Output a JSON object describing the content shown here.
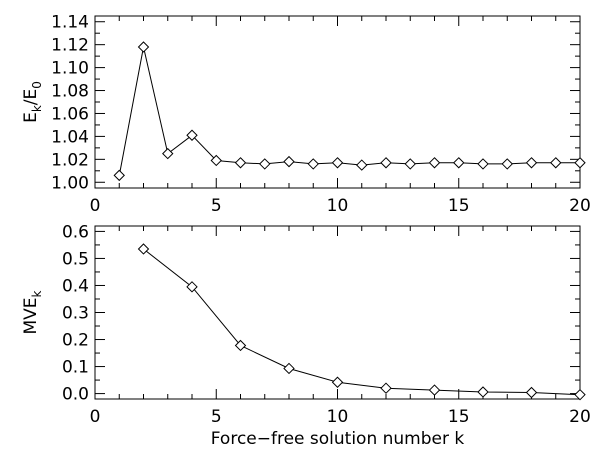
{
  "chart_data": [
    {
      "type": "line",
      "marker": "diamond",
      "xlabel": "",
      "ylabel_main": "E",
      "ylabel_sub1": "k",
      "ylabel_mid": "/E",
      "ylabel_sub2": "0",
      "xlim": [
        0,
        20
      ],
      "ylim": [
        0.995,
        1.145
      ],
      "xticks": [
        0,
        5,
        10,
        15,
        20
      ],
      "xtick_labels": [
        "0",
        "5",
        "10",
        "15",
        "20"
      ],
      "yticks": [
        1.0,
        1.02,
        1.04,
        1.06,
        1.08,
        1.1,
        1.12,
        1.14
      ],
      "ytick_labels": [
        "1.00",
        "1.02",
        "1.04",
        "1.06",
        "1.08",
        "1.10",
        "1.12",
        "1.14"
      ],
      "x": [
        1,
        2,
        3,
        4,
        5,
        6,
        7,
        8,
        9,
        10,
        11,
        12,
        13,
        14,
        15,
        16,
        17,
        18,
        19,
        20
      ],
      "y": [
        1.006,
        1.118,
        1.025,
        1.041,
        1.019,
        1.017,
        1.016,
        1.018,
        1.016,
        1.017,
        1.015,
        1.017,
        1.016,
        1.017,
        1.017,
        1.016,
        1.016,
        1.017,
        1.017,
        1.017
      ],
      "grid": false
    },
    {
      "type": "line",
      "marker": "diamond",
      "xlabel": "Force−free solution number k",
      "ylabel_main": "MVE",
      "ylabel_sub1": "k",
      "ylabel_mid": "",
      "ylabel_sub2": "",
      "xlim": [
        0,
        20
      ],
      "ylim": [
        -0.02,
        0.62
      ],
      "xticks": [
        0,
        5,
        10,
        15,
        20
      ],
      "xtick_labels": [
        "0",
        "5",
        "10",
        "15",
        "20"
      ],
      "yticks": [
        0.0,
        0.1,
        0.2,
        0.3,
        0.4,
        0.5,
        0.6
      ],
      "ytick_labels": [
        "0.0",
        "0.1",
        "0.2",
        "0.3",
        "0.4",
        "0.5",
        "0.6"
      ],
      "x": [
        2,
        4,
        6,
        8,
        10,
        12,
        14,
        16,
        18,
        20
      ],
      "y": [
        0.535,
        0.395,
        0.178,
        0.093,
        0.042,
        0.02,
        0.013,
        0.006,
        0.004,
        -0.004
      ],
      "grid": false
    }
  ]
}
